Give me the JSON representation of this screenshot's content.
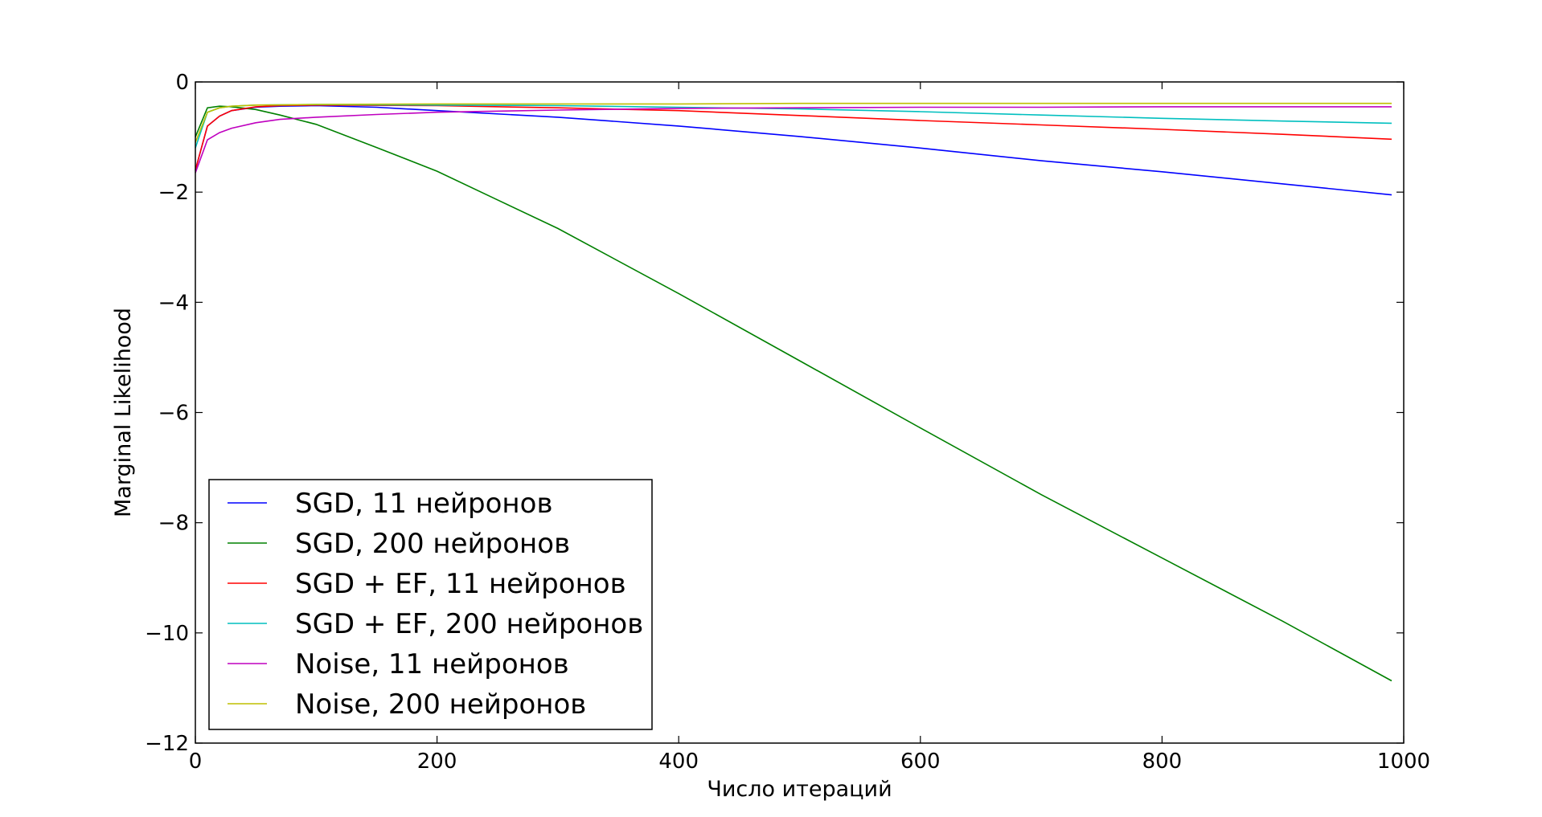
{
  "chart_data": {
    "type": "line",
    "title": "",
    "xlabel": "Число итераций",
    "ylabel": "Marginal Likelihood",
    "xlim": [
      0,
      1000
    ],
    "ylim": [
      -12,
      0
    ],
    "xticks": [
      0,
      200,
      400,
      600,
      800,
      1000
    ],
    "yticks": [
      0,
      -2,
      -4,
      -6,
      -8,
      -10,
      -12
    ],
    "xtick_labels": [
      "0",
      "200",
      "400",
      "600",
      "800",
      "1000"
    ],
    "ytick_labels": [
      "0",
      "−2",
      "−4",
      "−6",
      "−8",
      "−10",
      "−12"
    ],
    "grid": false,
    "legend_position": "lower-left",
    "series": [
      {
        "name": "SGD, 11 нейронов",
        "color": "#0000ff",
        "x": [
          0,
          10,
          20,
          30,
          50,
          70,
          100,
          150,
          200,
          300,
          400,
          500,
          600,
          700,
          800,
          900,
          990
        ],
        "y": [
          -1.6,
          -0.8,
          -0.62,
          -0.52,
          -0.46,
          -0.44,
          -0.43,
          -0.46,
          -0.52,
          -0.64,
          -0.8,
          -0.99,
          -1.2,
          -1.43,
          -1.63,
          -1.85,
          -2.05
        ]
      },
      {
        "name": "SGD, 200 нейронов",
        "color": "#008000",
        "x": [
          0,
          10,
          20,
          30,
          50,
          70,
          100,
          150,
          200,
          250,
          300,
          400,
          500,
          600,
          700,
          800,
          900,
          990
        ],
        "y": [
          -1.0,
          -0.47,
          -0.44,
          -0.45,
          -0.5,
          -0.6,
          -0.77,
          -1.19,
          -1.62,
          -2.14,
          -2.66,
          -3.84,
          -5.06,
          -6.28,
          -7.49,
          -8.64,
          -9.79,
          -10.87
        ]
      },
      {
        "name": "SGD + EF, 11 нейронов",
        "color": "#ff0000",
        "x": [
          0,
          10,
          20,
          30,
          50,
          70,
          100,
          200,
          300,
          400,
          500,
          600,
          700,
          800,
          900,
          990
        ],
        "y": [
          -1.6,
          -0.8,
          -0.62,
          -0.52,
          -0.45,
          -0.43,
          -0.42,
          -0.43,
          -0.47,
          -0.52,
          -0.61,
          -0.7,
          -0.78,
          -0.86,
          -0.95,
          -1.04
        ]
      },
      {
        "name": "SGD + EF, 200 нейронов",
        "color": "#00bfbf",
        "x": [
          0,
          10,
          20,
          30,
          50,
          100,
          200,
          300,
          400,
          500,
          600,
          700,
          800,
          900,
          990
        ],
        "y": [
          -1.2,
          -0.55,
          -0.47,
          -0.44,
          -0.42,
          -0.41,
          -0.42,
          -0.43,
          -0.46,
          -0.49,
          -0.54,
          -0.6,
          -0.66,
          -0.71,
          -0.75
        ]
      },
      {
        "name": "Noise, 11 нейронов",
        "color": "#bf00bf",
        "x": [
          0,
          10,
          20,
          30,
          50,
          70,
          100,
          150,
          200,
          300,
          400,
          500,
          600,
          700,
          800,
          900,
          990
        ],
        "y": [
          -1.65,
          -1.05,
          -0.92,
          -0.84,
          -0.74,
          -0.68,
          -0.64,
          -0.59,
          -0.55,
          -0.51,
          -0.48,
          -0.47,
          -0.46,
          -0.46,
          -0.45,
          -0.45,
          -0.45
        ]
      },
      {
        "name": "Noise, 200 нейронов",
        "color": "#bfbf00",
        "x": [
          0,
          10,
          20,
          30,
          50,
          100,
          200,
          300,
          400,
          500,
          600,
          700,
          800,
          900,
          990
        ],
        "y": [
          -1.1,
          -0.55,
          -0.47,
          -0.44,
          -0.42,
          -0.41,
          -0.4,
          -0.4,
          -0.4,
          -0.39,
          -0.39,
          -0.39,
          -0.39,
          -0.39,
          -0.39
        ]
      }
    ]
  }
}
